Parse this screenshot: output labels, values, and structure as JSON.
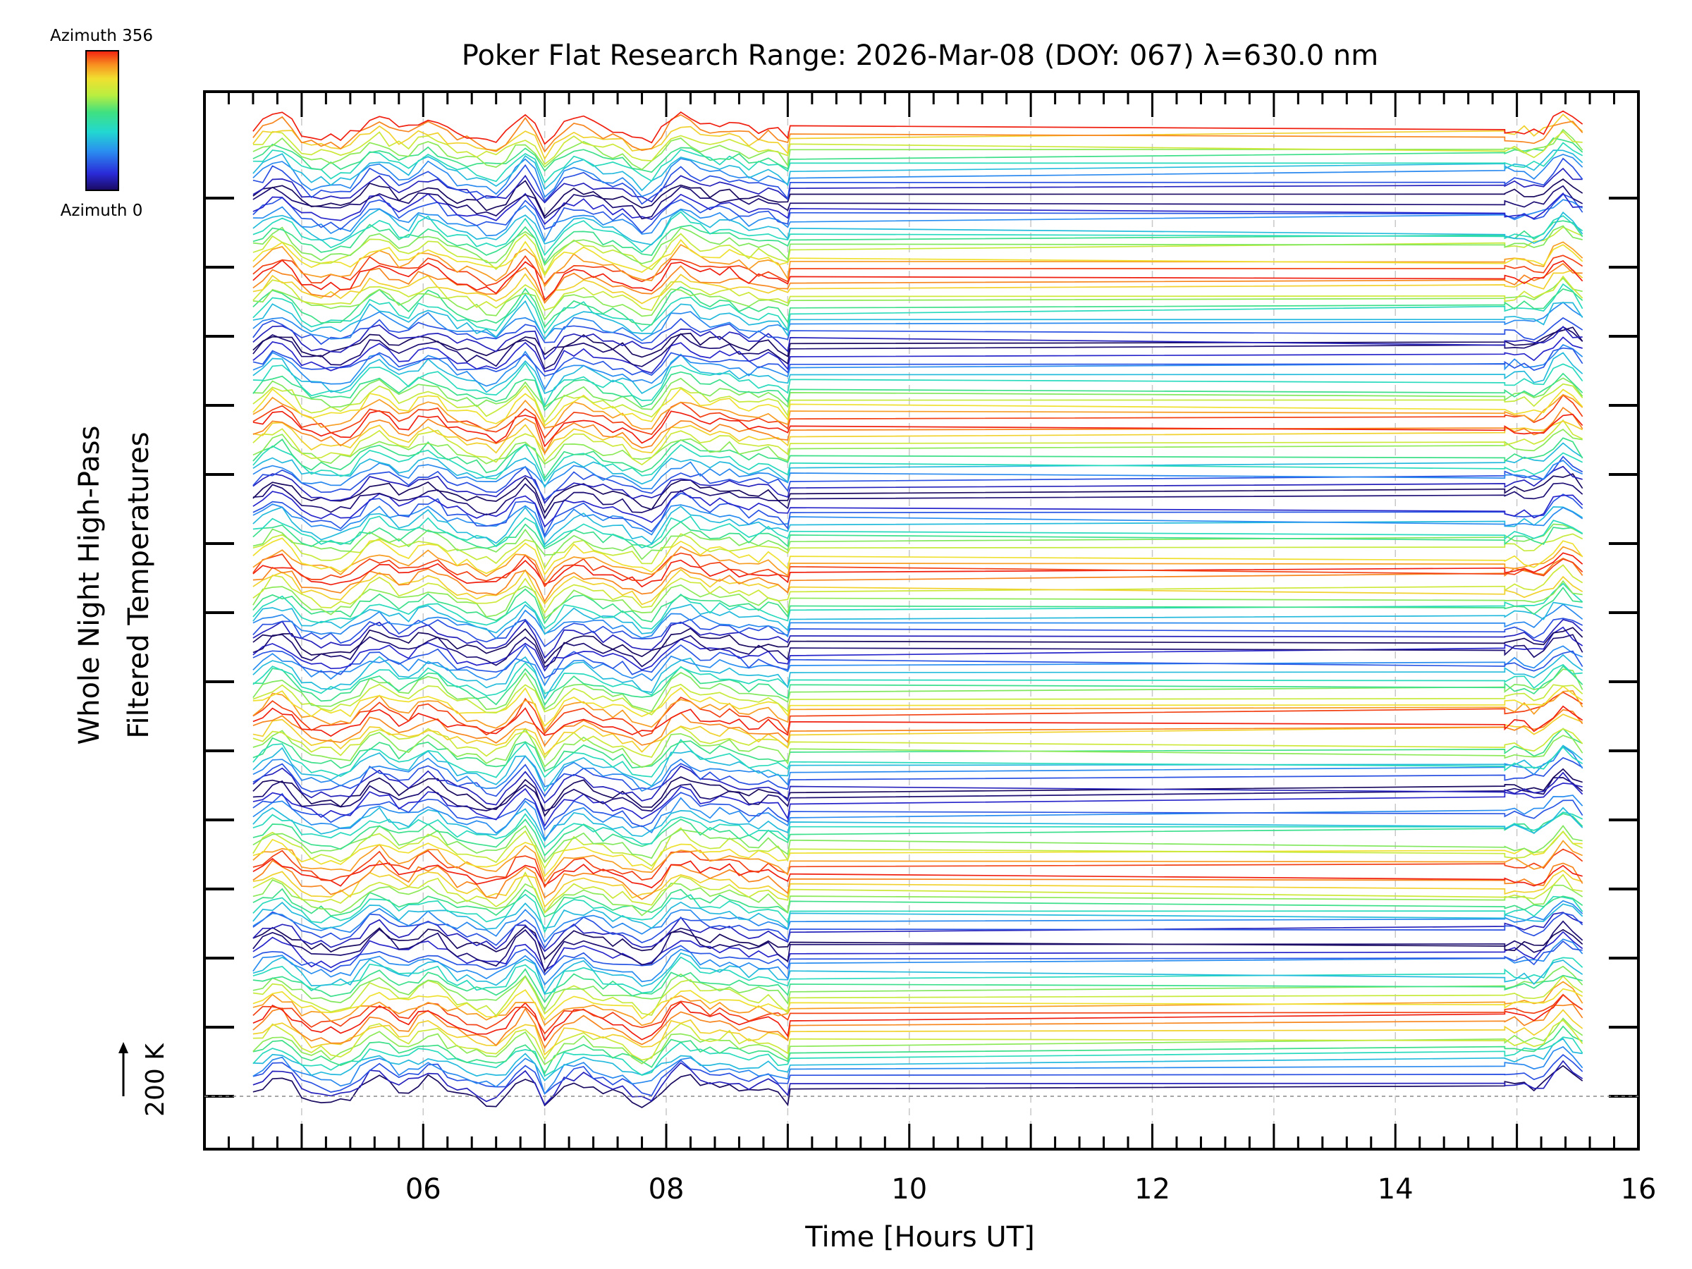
{
  "chart_data": {
    "type": "line",
    "title": "Poker Flat Research Range: 2026-Mar-08 (DOY: 067) λ=630.0 nm",
    "xlabel": "Time [Hours UT]",
    "ylabel_line1": "Whole Night High-Pass",
    "ylabel_line2": "Filtered Temperatures",
    "xlim": [
      4.2,
      16.0
    ],
    "x_ticks": [
      6,
      8,
      10,
      12,
      14,
      16
    ],
    "x_tick_labels": [
      "06",
      "08",
      "10",
      "12",
      "14",
      "16"
    ],
    "minor_x_step": 0.2,
    "grid": "dashed vertical every 1 hour",
    "scale_bar_label": "200 K",
    "colorbar": {
      "top_label": "Azimuth 356",
      "bottom_label": "Azimuth 0",
      "min": 0,
      "max": 356,
      "colormap": "rainbow"
    },
    "series_groups": 13,
    "azimuths_per_group": 12,
    "time_range": [
      4.6,
      15.55
    ],
    "data_gap": [
      9.0,
      14.9
    ],
    "note": "Stacked high-pass filtered temperature traces; each trace offset vertically and colored by azimuth."
  }
}
